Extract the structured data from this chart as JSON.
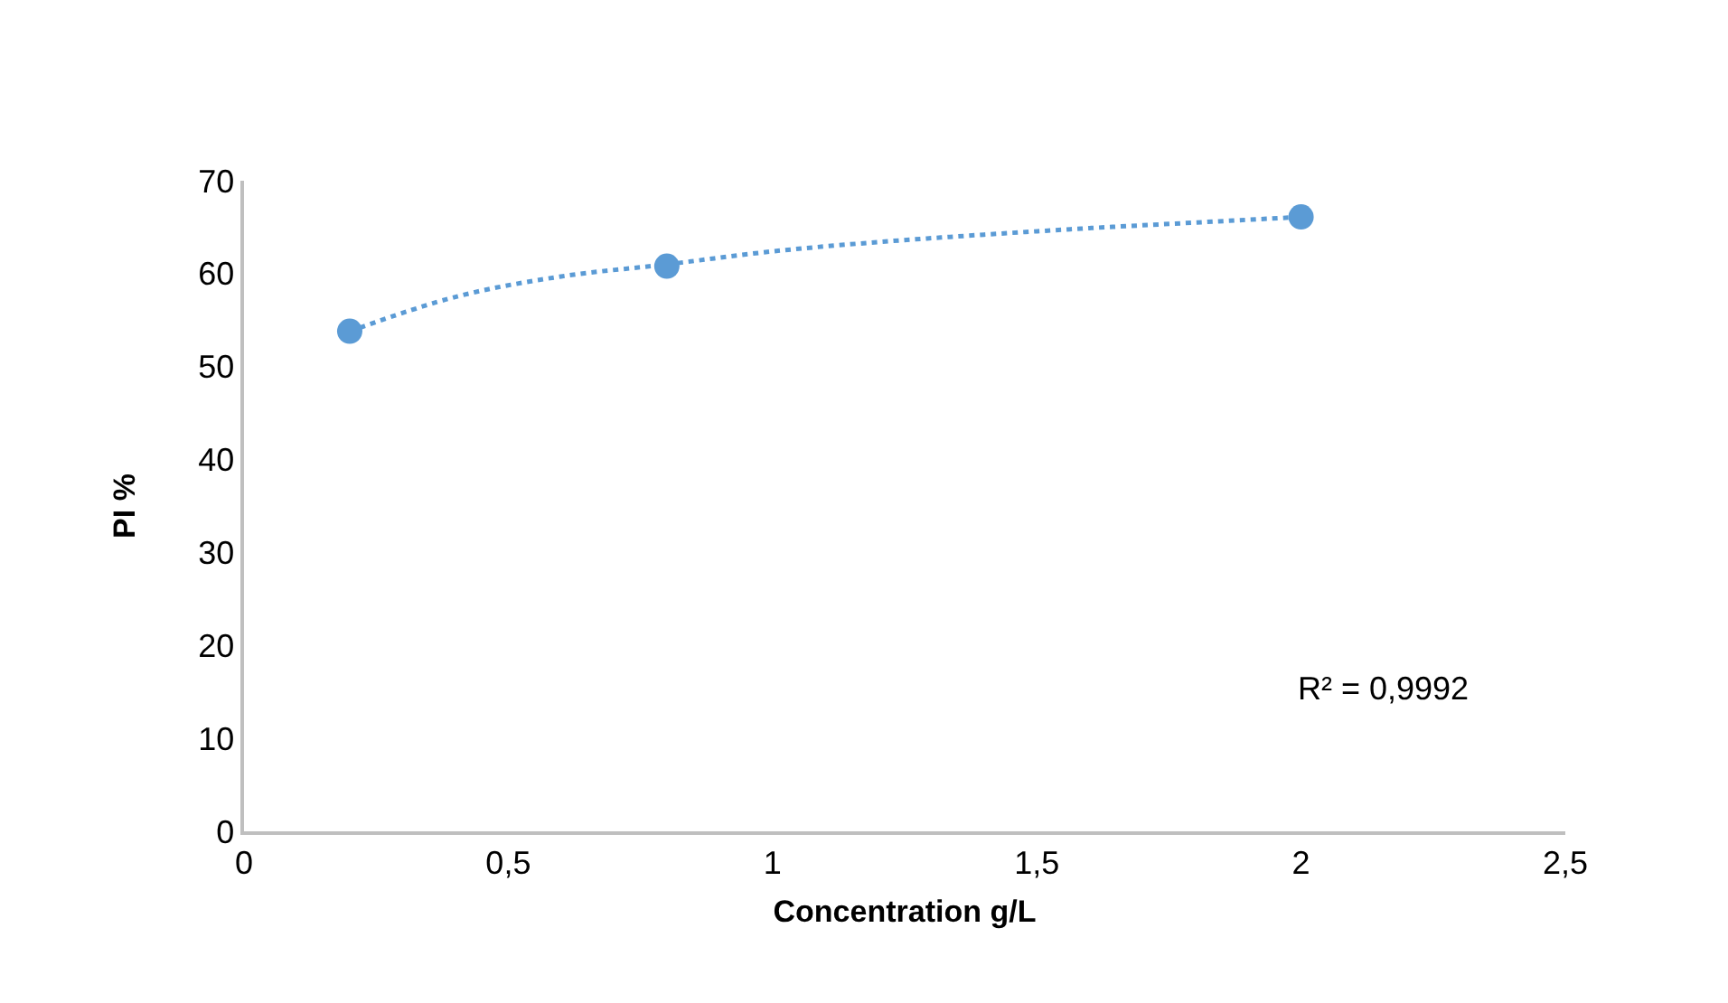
{
  "chart_data": {
    "type": "scatter",
    "xlabel": "Concentration g/L",
    "ylabel": "PI %",
    "xlim": [
      0,
      2.5
    ],
    "xticks": [
      0,
      {
        "value": 0.5,
        "label": "0,5"
      },
      1,
      {
        "value": 1.5,
        "label": "1,5"
      },
      2,
      {
        "value": 2.5,
        "label": "2,5"
      }
    ],
    "ylim": [
      0,
      70
    ],
    "yticks": [
      0,
      10,
      20,
      30,
      40,
      50,
      60,
      70
    ],
    "grid": false,
    "series": [
      {
        "type": "line",
        "color": "#5b9bd5",
        "line_style": "dotted",
        "marker": "none",
        "x": [
          0.2,
          0.4,
          0.6,
          0.8,
          1,
          1.2,
          1.4,
          1.6,
          1.8,
          2
        ],
        "values": [
          53.8,
          57.5,
          59.7,
          61.0,
          62.4,
          63.4,
          64.2,
          64.9,
          65.5,
          66.1
        ]
      },
      {
        "color": "#5b9bd5",
        "marker": "circle",
        "x": [
          0.2,
          0.8,
          2
        ],
        "values": [
          53.8,
          60.8,
          66.1
        ]
      }
    ],
    "annotations": [
      "R² = 0,9992"
    ]
  }
}
